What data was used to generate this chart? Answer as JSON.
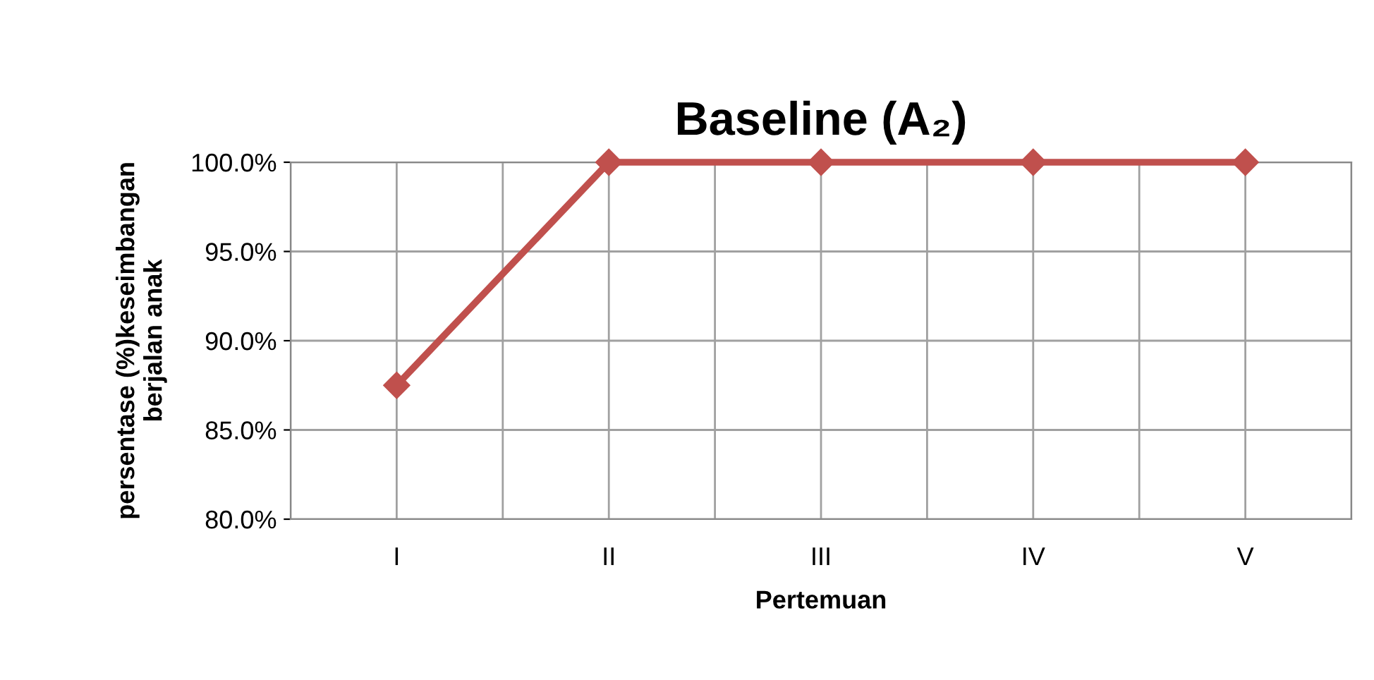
{
  "chart_data": {
    "type": "line",
    "title": "Baseline (A₂)",
    "xlabel": "Pertemuan",
    "ylabel": "persentase (%)keseimbangan\nberjalan anak",
    "categories": [
      "I",
      "II",
      "III",
      "IV",
      "V"
    ],
    "series": [
      {
        "color": "#c0504d",
        "values": [
          87.5,
          100,
          100,
          100,
          100
        ]
      }
    ],
    "ylim": [
      80,
      100
    ],
    "yticks": [
      {
        "value": 80,
        "label": "80.0%"
      },
      {
        "value": 85,
        "label": "85.0%"
      },
      {
        "value": 90,
        "label": "90.0%"
      },
      {
        "value": 95,
        "label": "95.0%"
      },
      {
        "value": 100,
        "label": "100.0%"
      }
    ],
    "grid": true,
    "marker": "diamond",
    "line_style": "solid"
  }
}
